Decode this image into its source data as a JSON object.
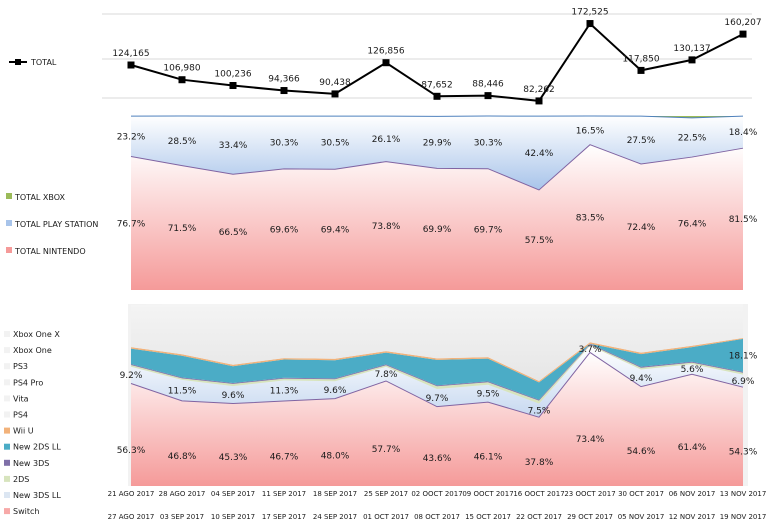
{
  "chart_data": [
    {
      "type": "line",
      "title": "",
      "legend": [
        "TOTAL"
      ],
      "categories": [
        "21 AGO 2017",
        "28 AGO 2017",
        "04 SEP 2017",
        "11 SEP 2017",
        "18 SEP 2017",
        "25 SEP 2017",
        "02 OOCT 2017",
        "09 OOCT 2017",
        "16 OOCT 2017",
        "23 OOCT 2017",
        "30 OCT 2017",
        "06 NOV 2017",
        "13 NOV 2017"
      ],
      "series": [
        {
          "name": "TOTAL",
          "values": [
            124165,
            106980,
            100236,
            94366,
            90438,
            126856,
            87652,
            88446,
            82262,
            172525,
            117850,
            130137,
            160207
          ],
          "labels": [
            "124,165",
            "106,980",
            "100,236",
            "94,366",
            "90,438",
            "126,856",
            "87,652",
            "88,446",
            "82,262",
            "172,525",
            "117,850",
            "130,137",
            "160,207"
          ]
        }
      ]
    },
    {
      "type": "area",
      "stacked_percent": true,
      "legend": [
        "TOTAL XBOX",
        "TOTAL PLAY STATION",
        "TOTAL NINTENDO"
      ],
      "series": [
        {
          "name": "TOTAL NINTENDO",
          "values": [
            76.7,
            71.5,
            66.5,
            69.6,
            69.4,
            73.8,
            69.9,
            69.7,
            57.5,
            83.5,
            72.4,
            76.4,
            81.5
          ],
          "labels": [
            "76.7%",
            "71.5%",
            "66.5%",
            "69.6%",
            "69.4%",
            "73.8%",
            "69.9%",
            "69.7%",
            "57.5%",
            "83.5%",
            "72.4%",
            "76.4%",
            "81.5%"
          ]
        },
        {
          "name": "TOTAL PLAY STATION",
          "values": [
            23.2,
            28.5,
            33.4,
            30.3,
            30.5,
            26.1,
            29.9,
            30.3,
            42.4,
            16.5,
            27.5,
            22.5,
            18.4
          ],
          "labels": [
            "23.2%",
            "28.5%",
            "33.4%",
            "30.3%",
            "30.5%",
            "26.1%",
            "29.9%",
            "30.3%",
            "42.4%",
            "16.5%",
            "27.5%",
            "22.5%",
            "18.4%"
          ]
        },
        {
          "name": "TOTAL XBOX",
          "values": [
            0.1,
            0,
            0.1,
            0.1,
            0.1,
            0.1,
            0.2,
            0,
            0.1,
            0,
            0.1,
            1.1,
            0.1
          ]
        }
      ]
    },
    {
      "type": "area",
      "stacked": true,
      "legend": [
        "Xbox One X",
        "Xbox One",
        "PS3",
        "PS4 Pro",
        "Vita",
        "PS4",
        "Wii U",
        "New 2DS LL",
        "New 3DS",
        "2DS",
        "New 3DS LL",
        "Switch"
      ],
      "x_labels_top": [
        "21 AGO 2017",
        "28 AGO 2017",
        "04 SEP 2017",
        "11 SEP 2017",
        "18 SEP 2017",
        "25 SEP 2017",
        "02 OOCT 2017",
        "09 OOCT 2017",
        "16 OOCT 2017",
        "23 OOCT 2017",
        "30 OCT 2017",
        "06 NOV 2017",
        "13 NOV 2017"
      ],
      "x_labels_bottom": [
        "27 AGO 2017",
        "03 SEP 2017",
        "10 SEP 2017",
        "17 SEP 2017",
        "24 SEP 2017",
        "01 OCT 2017",
        "08 OCT 2017",
        "15 OCT 2017",
        "22 OCT 2017",
        "29 OCT 2017",
        "05 NOV 2017",
        "12 NOV 2017",
        "19 NOV 2017"
      ],
      "series": [
        {
          "name": "Switch",
          "values": [
            56.3,
            46.8,
            45.3,
            46.7,
            48.0,
            57.7,
            43.6,
            46.1,
            37.8,
            73.4,
            54.6,
            61.4,
            54.3
          ],
          "labels": [
            "56.3%",
            "46.8%",
            "45.3%",
            "46.7%",
            "48.0%",
            "57.7%",
            "43.6%",
            "46.1%",
            "37.8%",
            "73.4%",
            "54.6%",
            "61.4%",
            "54.3%"
          ]
        },
        {
          "name": "New 3DS LL",
          "values": [
            9.2,
            11.5,
            9.6,
            11.3,
            9.6,
            7.8,
            9.7,
            9.5,
            7.5,
            3.7,
            9.4,
            5.6,
            6.9
          ],
          "labels": [
            "9.2%",
            "11.5%",
            "9.6%",
            "11.3%",
            "9.6%",
            "7.8%",
            "9.7%",
            "9.5%",
            "7.5%",
            "3.7%",
            "9.4%",
            "5.6%",
            "6.9%"
          ]
        },
        {
          "name": "2DS",
          "values": [
            1.0,
            0.8,
            1.2,
            1.0,
            1.0,
            0.8,
            1.5,
            1.4,
            1.6,
            0.6,
            1.0,
            0.8,
            1.0
          ]
        },
        {
          "name": "New 3DS",
          "values": [
            0.5,
            0.5,
            0.5,
            0.5,
            0.5,
            0.5,
            0.5,
            0.5,
            0.5,
            0.5,
            0.5,
            0.5,
            0.5
          ]
        },
        {
          "name": "New 2DS LL",
          "values": [
            8.5,
            12.0,
            9.2,
            10.0,
            10.0,
            6.5,
            14.0,
            12.5,
            9.5,
            0,
            7.0,
            8.0,
            18.1
          ],
          "labels": [
            "",
            "",
            "",
            "",
            "",
            "",
            "",
            "",
            "",
            "",
            "",
            "",
            "18.1%"
          ]
        },
        {
          "name": "Wii U",
          "values": [
            0.8,
            0.8,
            0.8,
            0.8,
            0.8,
            0.8,
            0.8,
            0.8,
            0.8,
            0.8,
            0.8,
            0.8,
            0.5
          ]
        },
        {
          "name": "PS4",
          "values": [
            23.2,
            27.6,
            33.4,
            29.7,
            30.1,
            25.9,
            29.9,
            29.2,
            42.3,
            21.0,
            26.7,
            22.9,
            18.7
          ]
        }
      ]
    }
  ],
  "colors": {
    "nintendo": "#f7a9a8",
    "playstation": "#c6d9f1",
    "xbox": "#9bbb59",
    "switch": "#f7a9a8",
    "new3dsll": "#dce6f2",
    "twods": "#d7e4bd",
    "new3ds": "#7f6fa8",
    "new2dsll": "#4bacc6",
    "wiiu": "#f2b27a",
    "ps4": "#eeeeee",
    "line": "#000000"
  }
}
